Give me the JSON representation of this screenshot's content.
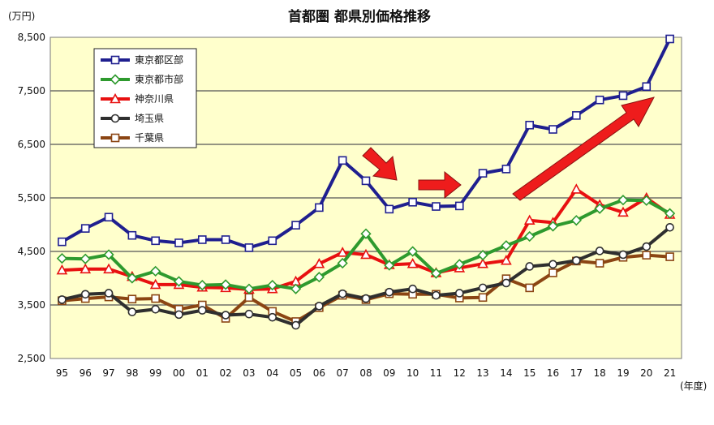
{
  "chart_data": {
    "type": "line",
    "title": "首都圏 都県別価格推移",
    "ylabel": "(万円)",
    "xlabel": "(年度)",
    "ylim": [
      2500,
      8500
    ],
    "yticks": [
      2500,
      3500,
      4500,
      5500,
      6500,
      7500,
      8500
    ],
    "ytick_labels": [
      "2,500",
      "3,500",
      "4,500",
      "5,500",
      "6,500",
      "7,500",
      "8,500"
    ],
    "categories": [
      "95",
      "96",
      "97",
      "98",
      "99",
      "00",
      "01",
      "02",
      "03",
      "04",
      "05",
      "06",
      "07",
      "08",
      "09",
      "10",
      "11",
      "12",
      "13",
      "14",
      "15",
      "16",
      "17",
      "18",
      "19",
      "20",
      "21"
    ],
    "grid": true,
    "legend_position": "top-left",
    "background_color": "#ffffcc",
    "series": [
      {
        "name": "東京都区部",
        "color": "#1f1f8f",
        "marker": "square",
        "values": [
          4680,
          4930,
          5140,
          4800,
          4700,
          4660,
          4720,
          4720,
          4570,
          4700,
          4990,
          5320,
          6200,
          5820,
          5290,
          5420,
          5340,
          5350,
          5960,
          6040,
          6860,
          6780,
          7040,
          7330,
          7410,
          7580,
          8470
        ]
      },
      {
        "name": "東京都市部",
        "color": "#2e9a2e",
        "marker": "diamond",
        "values": [
          4370,
          4360,
          4440,
          4000,
          4130,
          3940,
          3870,
          3880,
          3800,
          3870,
          3800,
          4020,
          4280,
          4830,
          4240,
          4500,
          4090,
          4260,
          4430,
          4610,
          4780,
          4970,
          5080,
          5300,
          5460,
          5450,
          5210
        ]
      },
      {
        "name": "神奈川県",
        "color": "#e81010",
        "marker": "triangle",
        "values": [
          4150,
          4170,
          4170,
          4030,
          3880,
          3880,
          3830,
          3820,
          3790,
          3800,
          3940,
          4270,
          4480,
          4440,
          4250,
          4270,
          4100,
          4190,
          4270,
          4330,
          5080,
          5040,
          5660,
          5370,
          5230,
          5500,
          5190
        ]
      },
      {
        "name": "埼玉県",
        "color": "#2f2f2f",
        "marker": "circle",
        "values": [
          3600,
          3700,
          3720,
          3370,
          3420,
          3320,
          3400,
          3310,
          3330,
          3270,
          3120,
          3480,
          3710,
          3620,
          3740,
          3800,
          3680,
          3720,
          3820,
          3910,
          4220,
          4260,
          4330,
          4510,
          4440,
          4590,
          4950
        ]
      },
      {
        "name": "千葉県",
        "color": "#8b4513",
        "marker": "square",
        "values": [
          3580,
          3620,
          3650,
          3610,
          3620,
          3420,
          3500,
          3250,
          3640,
          3380,
          3190,
          3450,
          3680,
          3600,
          3710,
          3700,
          3700,
          3630,
          3640,
          3990,
          3820,
          4100,
          4320,
          4280,
          4390,
          4430,
          4400
        ]
      }
    ]
  }
}
